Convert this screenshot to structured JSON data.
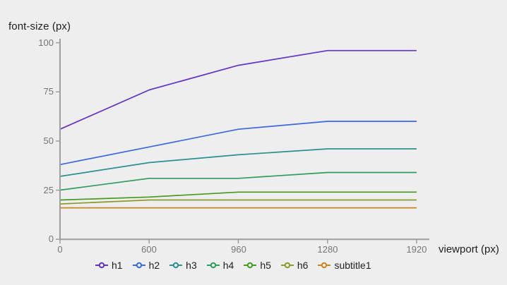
{
  "chart_data": {
    "type": "line",
    "title": "font-size (px)",
    "xlabel": "viewport (px)",
    "x_categories": [
      0,
      600,
      960,
      1280,
      1920
    ],
    "x_tick_labels": [
      "0",
      "600",
      "960",
      "1280",
      "1920"
    ],
    "y_tick_labels": [
      "0",
      "25",
      "50",
      "75",
      "100"
    ],
    "ylim": [
      0,
      100
    ],
    "x_axis_note": "ordinal axis: breakpoints equally spaced",
    "grid": false,
    "legend_position": "bottom",
    "series": [
      {
        "name": "h1",
        "color": "#6133c7",
        "values": [
          56,
          76,
          88.5,
          96,
          96
        ]
      },
      {
        "name": "h2",
        "color": "#3b68de",
        "values": [
          38,
          47,
          56,
          60,
          60
        ]
      },
      {
        "name": "h3",
        "color": "#2b9090",
        "values": [
          32,
          39,
          43,
          46,
          46
        ]
      },
      {
        "name": "h4",
        "color": "#2e9c5c",
        "values": [
          25,
          31,
          31,
          34,
          34
        ]
      },
      {
        "name": "h5",
        "color": "#459a20",
        "values": [
          20,
          21.5,
          24,
          24,
          24
        ]
      },
      {
        "name": "h6",
        "color": "#8a9b2c",
        "values": [
          18,
          20,
          20,
          20,
          20
        ]
      },
      {
        "name": "subtitle1",
        "color": "#c9861f",
        "values": [
          16,
          16,
          16,
          16,
          16
        ]
      }
    ],
    "colors": {
      "background": "#eeeeee",
      "axis": "#9e9e9e",
      "tick_label_text": "#757575",
      "label_text": "#1f1f1f"
    }
  }
}
